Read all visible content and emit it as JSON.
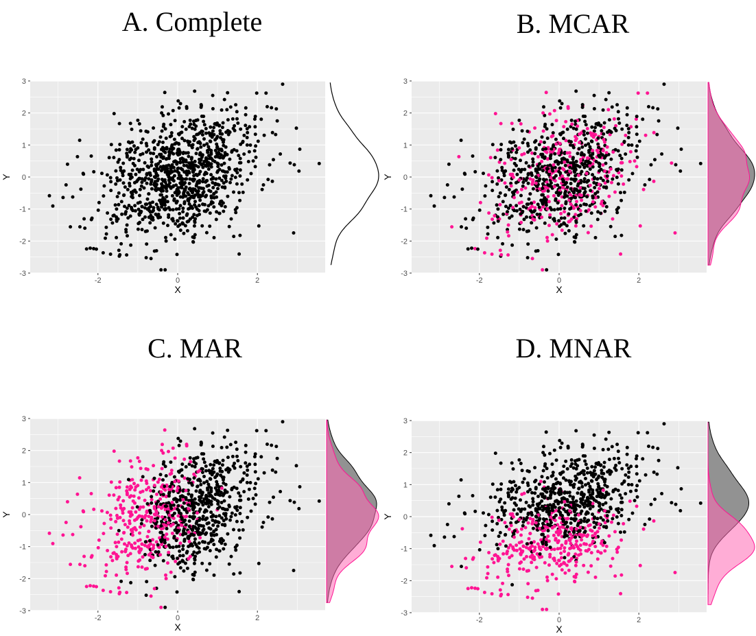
{
  "titles": {
    "a": "A. Complete",
    "b": "B. MCAR",
    "c": "C. MAR",
    "d": "D. MNAR"
  },
  "colors": {
    "panel_bg": "#ebebeb",
    "grid": "#ffffff",
    "observed": "#000000",
    "missing": "#ff1493",
    "density_observed_fill": "#7f7f7f",
    "density_missing_fill": "#ff69b4"
  },
  "chart_data": [
    {
      "id": "A",
      "type": "scatter",
      "title": "A. Complete",
      "xlabel": "X",
      "ylabel": "Y",
      "xlim": [
        -3.7,
        3.7
      ],
      "ylim": [
        -3,
        3
      ],
      "xticks": [
        -2,
        0,
        2
      ],
      "yticks": [
        -3,
        -2,
        -1,
        0,
        1,
        2,
        3
      ],
      "n_points": 1000,
      "correlation": 0.3,
      "missing_mechanism": "none",
      "marginal": "y-density (complete only)"
    },
    {
      "id": "B",
      "type": "scatter",
      "title": "B. MCAR",
      "xlabel": "X",
      "ylabel": "Y",
      "xlim": [
        -3.7,
        3.7
      ],
      "ylim": [
        -3,
        3
      ],
      "xticks": [
        -2,
        0,
        2
      ],
      "yticks": [
        -3,
        -2,
        -1,
        0,
        1,
        2,
        3
      ],
      "n_points": 1000,
      "correlation": 0.3,
      "missing_mechanism": "MCAR",
      "marginal": "y-density observed vs missing"
    },
    {
      "id": "C",
      "type": "scatter",
      "title": "C. MAR",
      "xlabel": "X",
      "ylabel": "Y",
      "xlim": [
        -3.7,
        3.7
      ],
      "ylim": [
        -3,
        3
      ],
      "xticks": [
        -2,
        0,
        2
      ],
      "yticks": [
        -3,
        -2,
        -1,
        0,
        1,
        2,
        3
      ],
      "n_points": 1000,
      "correlation": 0.3,
      "missing_mechanism": "MAR",
      "marginal": "y-density observed vs missing"
    },
    {
      "id": "D",
      "type": "scatter",
      "title": "D. MNAR",
      "xlabel": "X",
      "ylabel": "Y",
      "xlim": [
        -3.7,
        3.7
      ],
      "ylim": [
        -3,
        3
      ],
      "xticks": [
        -2,
        0,
        2
      ],
      "yticks": [
        -3,
        -2,
        -1,
        0,
        1,
        2,
        3
      ],
      "n_points": 1000,
      "correlation": 0.3,
      "missing_mechanism": "MNAR",
      "marginal": "y-density observed vs missing"
    }
  ]
}
